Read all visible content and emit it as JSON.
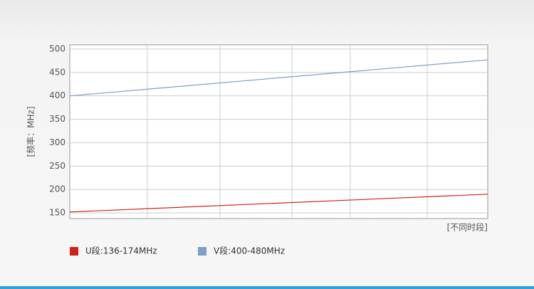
{
  "chart_data": {
    "type": "line",
    "y_label": "[频率：MHz]",
    "x_label": "[不同时段]",
    "x": [
      0,
      1
    ],
    "xlim": [
      0,
      1
    ],
    "ylim": [
      138,
      509
    ],
    "yticks": [
      150,
      200,
      250,
      300,
      350,
      400,
      450,
      500
    ],
    "grid": true,
    "legend": "bottom-left",
    "series": [
      {
        "name": "U段:136-174MHz",
        "color": "#cc2418",
        "values": [
          152,
          190
        ]
      },
      {
        "name": "V段:400-480MHz",
        "color": "#7e9ec8",
        "values": [
          400,
          477
        ]
      }
    ]
  }
}
